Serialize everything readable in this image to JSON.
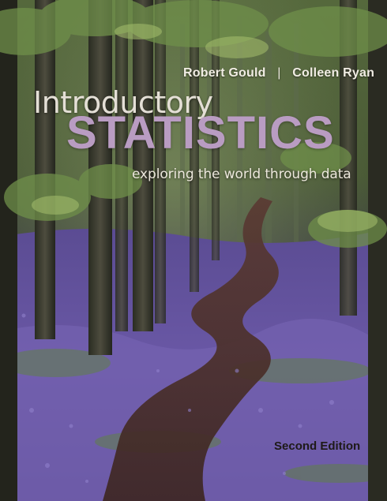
{
  "cover": {
    "authors": [
      "Robert Gould",
      "Colleen Ryan"
    ],
    "author_separator": "|",
    "title_line1": "Introductory",
    "title_line2": "STATISTICS",
    "subtitle": "exploring the world through data",
    "edition": "Second Edition"
  },
  "colors": {
    "title_line2": "#b99cc2",
    "title_line1": "#e4dfd6",
    "foliage": "#6f8f4a",
    "bluebells": "#6a58a6",
    "path": "#4a2f2a"
  }
}
